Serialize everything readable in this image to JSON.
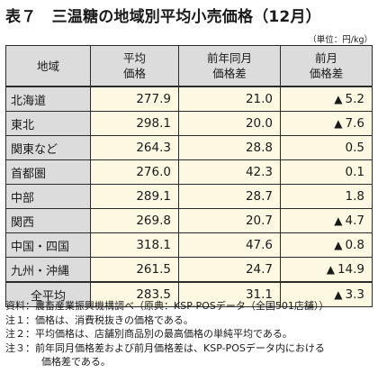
{
  "title": "表７　三温糖の地域別平均小売価格（12月）",
  "unit": "（単位：円/kg）",
  "table": {
    "headers": [
      "地域",
      "平均\n価格",
      "前年同月\n価格差",
      "前月\n価格差"
    ],
    "rows": [
      {
        "region": "北海道",
        "avg": "277.9",
        "yoy": "21.0",
        "mom": "5.2",
        "mom_up": true
      },
      {
        "region": "東北",
        "avg": "298.1",
        "yoy": "20.0",
        "mom": "7.6",
        "mom_up": true
      },
      {
        "region": "関東など",
        "avg": "264.3",
        "yoy": "28.8",
        "mom": "0.5",
        "mom_up": false
      },
      {
        "region": "首都圏",
        "avg": "276.0",
        "yoy": "42.3",
        "mom": "0.1",
        "mom_up": false
      },
      {
        "region": "中部",
        "avg": "289.1",
        "yoy": "28.7",
        "mom": "1.8",
        "mom_up": false
      },
      {
        "region": "関西",
        "avg": "269.8",
        "yoy": "20.7",
        "mom": "4.7",
        "mom_up": true
      },
      {
        "region": "中国・四国",
        "avg": "318.1",
        "yoy": "47.6",
        "mom": "0.8",
        "mom_up": true
      },
      {
        "region": "九州・沖縄",
        "avg": "261.5",
        "yoy": "24.7",
        "mom": "14.9",
        "mom_up": true
      }
    ],
    "total": {
      "region": "全平均",
      "avg": "283.5",
      "yoy": "31.1",
      "mom": "3.3",
      "mom_up": true
    },
    "up_marker": "▲"
  },
  "notes": {
    "source": "資料：農畜産業振興機構調べ（原典：KSP-POSデータ（全国501店舗））",
    "note1": "注１：価格は、消費税抜きの価格である。",
    "note2": "注２：平均価格は、店舗別商品別の最高価格の単純平均である。",
    "note3a": "注３：前年同月価格差および前月価格差は、KSP-POSデータ内における",
    "note3b": "価格差である。"
  }
}
